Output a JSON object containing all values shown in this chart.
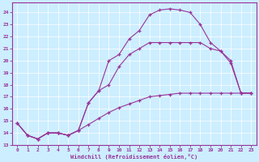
{
  "xlabel": "Windchill (Refroidissement éolien,°C)",
  "bg_color": "#cceeff",
  "line_color": "#993399",
  "xlim": [
    -0.5,
    23.5
  ],
  "ylim": [
    13.0,
    24.8
  ],
  "xticks": [
    0,
    1,
    2,
    3,
    4,
    5,
    6,
    7,
    8,
    9,
    10,
    11,
    12,
    13,
    14,
    15,
    16,
    17,
    18,
    19,
    20,
    21,
    22,
    23
  ],
  "yticks": [
    13,
    14,
    15,
    16,
    17,
    18,
    19,
    20,
    21,
    22,
    23,
    24
  ],
  "line1_x": [
    0,
    1,
    2,
    3,
    4,
    5,
    6,
    7,
    8,
    9,
    10,
    11,
    12,
    13,
    14,
    15,
    16,
    17,
    18,
    19,
    20,
    21,
    22,
    23
  ],
  "line1_y": [
    14.8,
    13.8,
    13.5,
    14.0,
    14.0,
    13.8,
    14.2,
    14.7,
    15.2,
    15.7,
    16.1,
    16.4,
    16.7,
    17.0,
    17.1,
    17.2,
    17.3,
    17.3,
    17.3,
    17.3,
    17.3,
    17.3,
    17.3,
    17.3
  ],
  "line2_x": [
    0,
    1,
    2,
    3,
    4,
    5,
    6,
    7,
    8,
    9,
    10,
    11,
    12,
    13,
    14,
    15,
    16,
    17,
    18,
    19,
    20,
    21,
    22,
    23
  ],
  "line2_y": [
    14.8,
    13.8,
    13.5,
    14.0,
    14.0,
    13.8,
    14.2,
    16.5,
    17.5,
    18.0,
    19.5,
    20.5,
    21.0,
    21.5,
    21.5,
    21.5,
    21.5,
    21.5,
    21.5,
    21.0,
    20.8,
    19.8,
    17.3,
    17.3
  ],
  "line3_x": [
    0,
    1,
    2,
    3,
    4,
    5,
    6,
    7,
    8,
    9,
    10,
    11,
    12,
    13,
    14,
    15,
    16,
    17,
    18,
    19,
    20,
    21,
    22,
    23
  ],
  "line3_y": [
    14.8,
    13.8,
    13.5,
    14.0,
    14.0,
    13.8,
    14.2,
    16.5,
    17.5,
    20.0,
    20.5,
    21.8,
    22.5,
    23.8,
    24.2,
    24.3,
    24.2,
    24.0,
    23.0,
    21.5,
    20.8,
    20.0,
    17.3,
    17.3
  ]
}
